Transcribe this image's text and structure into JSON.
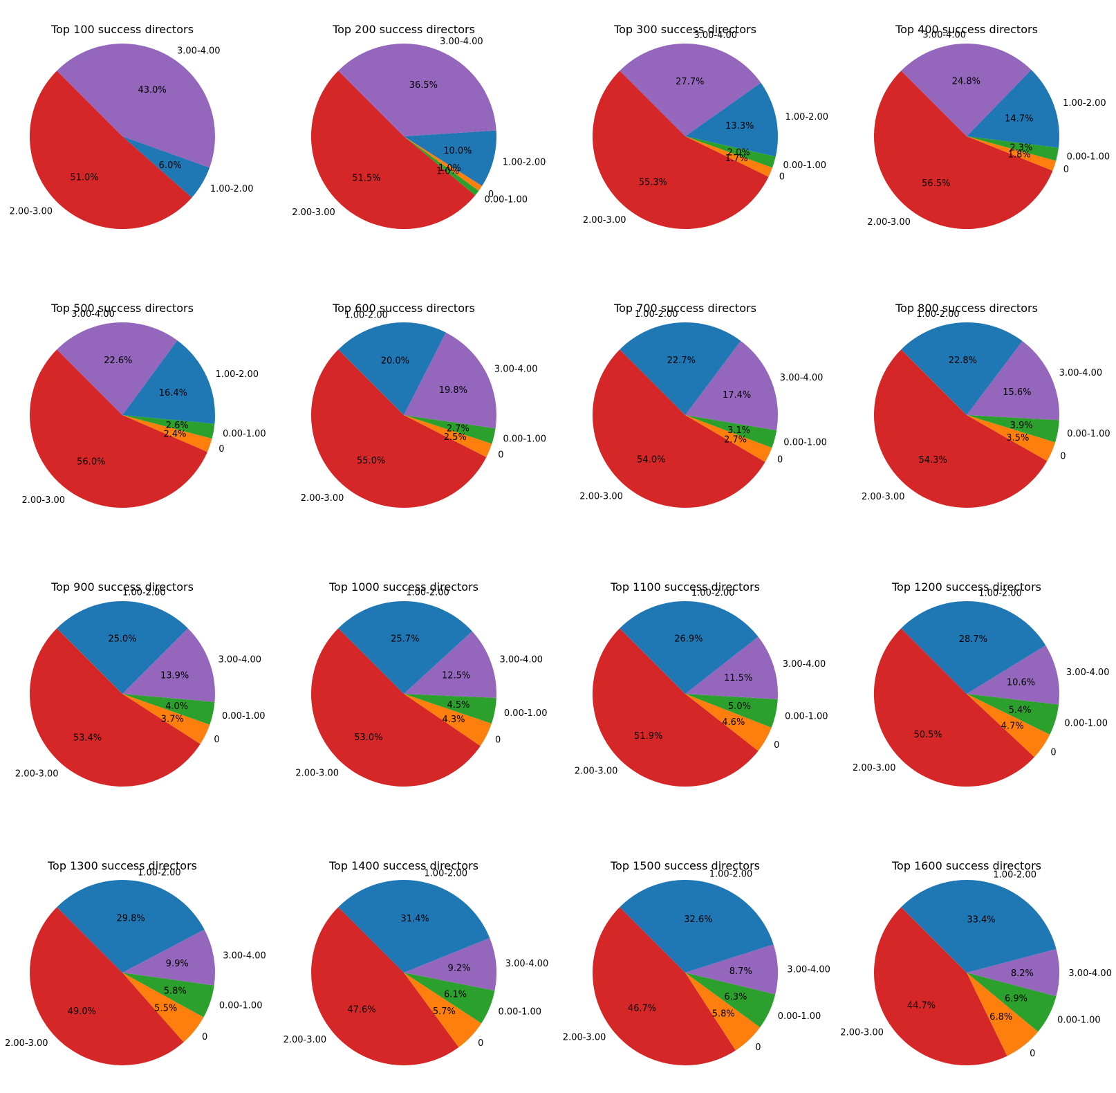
{
  "chart_data": [
    {
      "type": "pie",
      "title": "Top 100 success directors",
      "labels": [
        "2.00-3.00",
        "1.00-2.00",
        "3.00-4.00"
      ],
      "values": [
        51.0,
        6.0,
        43.0
      ],
      "percent_labels": [
        "51.0%",
        "6.0%",
        "43.0%"
      ]
    },
    {
      "type": "pie",
      "title": "Top 200 success directors",
      "labels": [
        "2.00-3.00",
        "0.00-1.00",
        "0",
        "1.00-2.00",
        "3.00-4.00"
      ],
      "values": [
        51.5,
        1.0,
        1.0,
        10.0,
        36.5
      ],
      "percent_labels": [
        "51.5%",
        "1.0%",
        "1.0%",
        "10.0%",
        "36.5%"
      ]
    },
    {
      "type": "pie",
      "title": "Top 300 success directors",
      "labels": [
        "2.00-3.00",
        "0",
        "0.00-1.00",
        "1.00-2.00",
        "3.00-4.00"
      ],
      "values": [
        55.3,
        1.7,
        2.0,
        13.3,
        27.7
      ],
      "percent_labels": [
        "55.3%",
        "1.7%",
        "2.0%",
        "13.3%",
        "27.7%"
      ]
    },
    {
      "type": "pie",
      "title": "Top 400 success directors",
      "labels": [
        "2.00-3.00",
        "0",
        "0.00-1.00",
        "1.00-2.00",
        "3.00-4.00"
      ],
      "values": [
        56.5,
        1.8,
        2.3,
        14.7,
        24.8
      ],
      "percent_labels": [
        "56.5%",
        "1.8%",
        "2.3%",
        "14.7%",
        "24.8%"
      ]
    },
    {
      "type": "pie",
      "title": "Top 500 success directors",
      "labels": [
        "2.00-3.00",
        "0",
        "0.00-1.00",
        "1.00-2.00",
        "3.00-4.00"
      ],
      "values": [
        56.0,
        2.4,
        2.6,
        16.4,
        22.6
      ],
      "percent_labels": [
        "56.0%",
        "2.4%",
        "2.6%",
        "16.4%",
        "22.6%"
      ]
    },
    {
      "type": "pie",
      "title": "Top 600 success directors",
      "labels": [
        "2.00-3.00",
        "0",
        "0.00-1.00",
        "3.00-4.00",
        "1.00-2.00"
      ],
      "values": [
        55.0,
        2.5,
        2.7,
        19.8,
        20.0
      ],
      "percent_labels": [
        "55.0%",
        "2.5%",
        "2.7%",
        "19.8%",
        "20.0%"
      ]
    },
    {
      "type": "pie",
      "title": "Top 700 success directors",
      "labels": [
        "2.00-3.00",
        "0",
        "0.00-1.00",
        "3.00-4.00",
        "1.00-2.00"
      ],
      "values": [
        54.0,
        2.7,
        3.1,
        17.4,
        22.7
      ],
      "percent_labels": [
        "54.0%",
        "2.7%",
        "3.1%",
        "17.4%",
        "22.7%"
      ]
    },
    {
      "type": "pie",
      "title": "Top 800 success directors",
      "labels": [
        "2.00-3.00",
        "0",
        "0.00-1.00",
        "3.00-4.00",
        "1.00-2.00"
      ],
      "values": [
        54.3,
        3.5,
        3.9,
        15.6,
        22.8
      ],
      "percent_labels": [
        "54.3%",
        "3.5%",
        "3.9%",
        "15.6%",
        "22.8%"
      ]
    },
    {
      "type": "pie",
      "title": "Top 900 success directors",
      "labels": [
        "2.00-3.00",
        "0",
        "0.00-1.00",
        "3.00-4.00",
        "1.00-2.00"
      ],
      "values": [
        53.4,
        3.7,
        4.0,
        13.9,
        25.0
      ],
      "percent_labels": [
        "53.4%",
        "3.7%",
        "4.0%",
        "13.9%",
        "25.0%"
      ]
    },
    {
      "type": "pie",
      "title": "Top 1000 success directors",
      "labels": [
        "2.00-3.00",
        "0",
        "0.00-1.00",
        "3.00-4.00",
        "1.00-2.00"
      ],
      "values": [
        53.0,
        4.3,
        4.5,
        12.5,
        25.7
      ],
      "percent_labels": [
        "53.0%",
        "4.3%",
        "4.5%",
        "12.5%",
        "25.7%"
      ]
    },
    {
      "type": "pie",
      "title": "Top 1100 success directors",
      "labels": [
        "2.00-3.00",
        "0",
        "0.00-1.00",
        "3.00-4.00",
        "1.00-2.00"
      ],
      "values": [
        51.9,
        4.6,
        5.0,
        11.5,
        26.9
      ],
      "percent_labels": [
        "51.9%",
        "4.6%",
        "5.0%",
        "11.5%",
        "26.9%"
      ]
    },
    {
      "type": "pie",
      "title": "Top 1200 success directors",
      "labels": [
        "2.00-3.00",
        "0",
        "0.00-1.00",
        "3.00-4.00",
        "1.00-2.00"
      ],
      "values": [
        50.5,
        4.7,
        5.4,
        10.6,
        28.7
      ],
      "percent_labels": [
        "50.5%",
        "4.7%",
        "5.4%",
        "10.6%",
        "28.7%"
      ]
    },
    {
      "type": "pie",
      "title": "Top 1300 success directors",
      "labels": [
        "2.00-3.00",
        "0",
        "0.00-1.00",
        "3.00-4.00",
        "1.00-2.00"
      ],
      "values": [
        49.0,
        5.5,
        5.8,
        9.9,
        29.8
      ],
      "percent_labels": [
        "49.0%",
        "5.5%",
        "5.8%",
        "9.9%",
        "29.8%"
      ]
    },
    {
      "type": "pie",
      "title": "Top 1400 success directors",
      "labels": [
        "2.00-3.00",
        "0",
        "0.00-1.00",
        "3.00-4.00",
        "1.00-2.00"
      ],
      "values": [
        47.6,
        5.7,
        6.1,
        9.2,
        31.4
      ],
      "percent_labels": [
        "47.6%",
        "5.7%",
        "6.1%",
        "9.2%",
        "31.4%"
      ]
    },
    {
      "type": "pie",
      "title": "Top 1500 success directors",
      "labels": [
        "2.00-3.00",
        "0",
        "0.00-1.00",
        "3.00-4.00",
        "1.00-2.00"
      ],
      "values": [
        46.7,
        5.8,
        6.3,
        8.7,
        32.6
      ],
      "percent_labels": [
        "46.7%",
        "5.8%",
        "6.3%",
        "8.7%",
        "32.6%"
      ]
    },
    {
      "type": "pie",
      "title": "Top 1600 success directors",
      "labels": [
        "2.00-3.00",
        "0",
        "0.00-1.00",
        "3.00-4.00",
        "1.00-2.00"
      ],
      "values": [
        44.7,
        6.8,
        6.9,
        8.2,
        33.4
      ],
      "percent_labels": [
        "44.7%",
        "6.8%",
        "6.9%",
        "8.2%",
        "33.4%"
      ]
    }
  ],
  "colors": {
    "2.00-3.00": "#d62728",
    "0": "#ff7f0e",
    "0.00-1.00": "#2ca02c",
    "1.00-2.00": "#1f77b4",
    "3.00-4.00": "#9467bd"
  },
  "legend": "none",
  "grid": false
}
